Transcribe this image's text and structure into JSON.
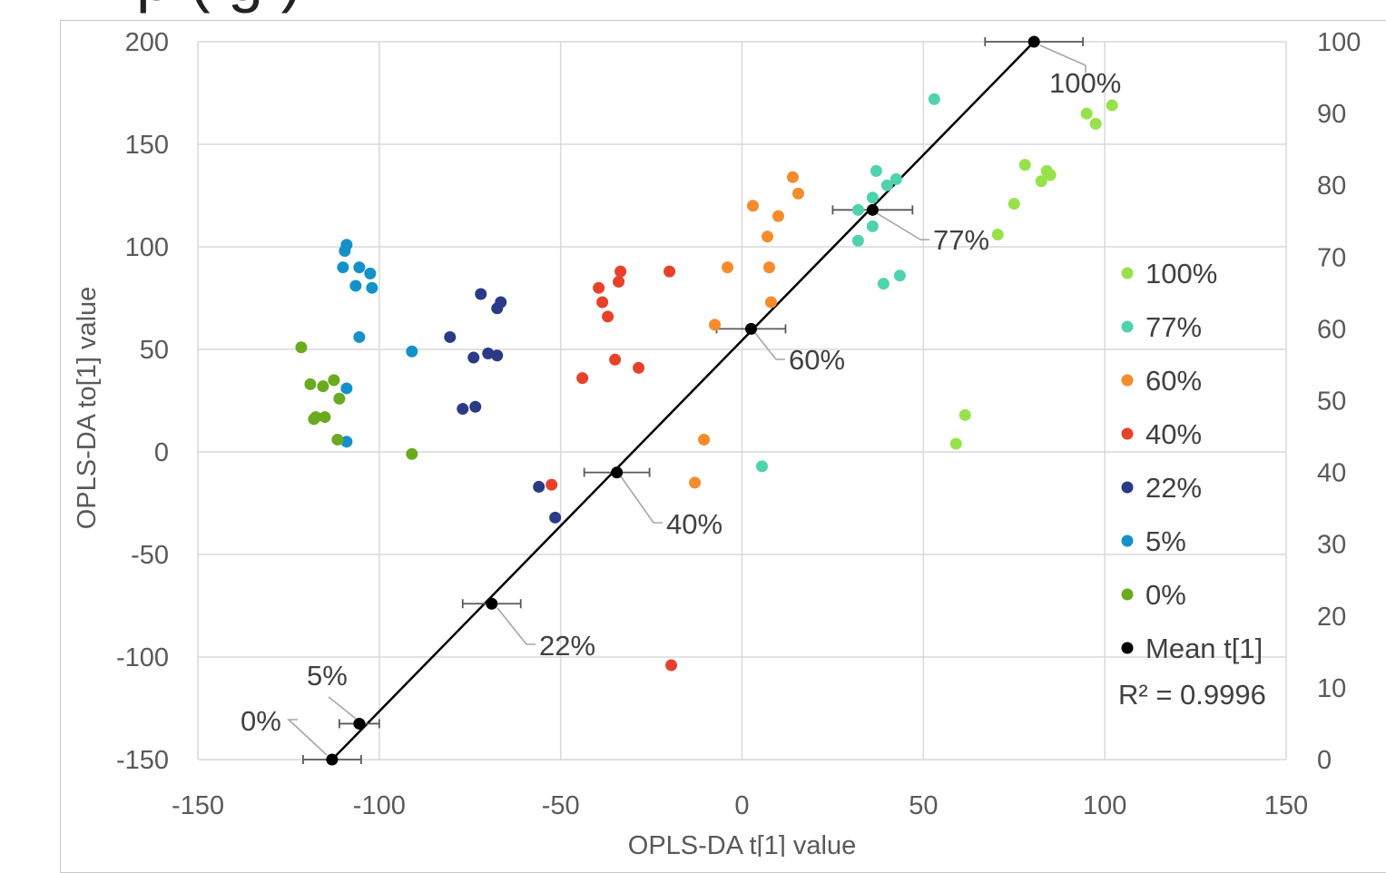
{
  "page": {
    "title": "p                          ( g       )"
  },
  "colors": {
    "0%": "#6aaa1f",
    "5%": "#1591c9",
    "22%": "#2a3a87",
    "40%": "#e8412a",
    "60%": "#f68b2c",
    "77%": "#4fd2b0",
    "100%": "#97e24a",
    "mean": "#000000",
    "grid": "#d9d9d9",
    "error_bar": "#595959",
    "leader_line": "#a6a6a6"
  },
  "chart_data": {
    "type": "scatter",
    "xlabel": "OPLS-DA t[1] value",
    "ylabel": "OPLS-DA to[1] value",
    "xlim": [
      -150,
      150
    ],
    "ylim": [
      -150,
      200
    ],
    "y2lim": [
      0,
      100
    ],
    "x_ticks": [
      "-150",
      "-100",
      "-50",
      "0",
      "50",
      "100",
      "150"
    ],
    "y_ticks": [
      "200",
      "150",
      "100",
      "50",
      "0",
      "-50",
      "-100",
      "-150"
    ],
    "y2_ticks": [
      "100",
      "90",
      "80",
      "70",
      "60",
      "50",
      "40",
      "30",
      "20",
      "10",
      "0"
    ],
    "grid": true,
    "legend_position": "right",
    "r_squared": "R² = 0.9996",
    "series": [
      {
        "name": "100%",
        "color_key": "100%",
        "points": [
          [
            102,
            169
          ],
          [
            95,
            165
          ],
          [
            97.5,
            160
          ],
          [
            78,
            140
          ],
          [
            84,
            137
          ],
          [
            85,
            135
          ],
          [
            82.5,
            132
          ],
          [
            75,
            121
          ],
          [
            70.5,
            106
          ],
          [
            61.5,
            18
          ],
          [
            59,
            4
          ]
        ]
      },
      {
        "name": "77%",
        "color_key": "77%",
        "points": [
          [
            53,
            172
          ],
          [
            37,
            137
          ],
          [
            42.5,
            133
          ],
          [
            40,
            130
          ],
          [
            36,
            124
          ],
          [
            32,
            118
          ],
          [
            36,
            110
          ],
          [
            32,
            103
          ],
          [
            43.5,
            86
          ],
          [
            39,
            82
          ],
          [
            5.5,
            -7
          ]
        ]
      },
      {
        "name": "60%",
        "color_key": "60%",
        "points": [
          [
            14,
            134
          ],
          [
            15.5,
            126
          ],
          [
            3,
            120
          ],
          [
            10,
            115
          ],
          [
            7,
            105
          ],
          [
            -4,
            90
          ],
          [
            7.5,
            90
          ],
          [
            8,
            73
          ],
          [
            -7.5,
            62
          ],
          [
            -10.5,
            6
          ],
          [
            -13,
            -15
          ]
        ]
      },
      {
        "name": "40%",
        "color_key": "40%",
        "points": [
          [
            -33.5,
            88
          ],
          [
            -20,
            88
          ],
          [
            -34,
            83
          ],
          [
            -39.5,
            80
          ],
          [
            -38.5,
            73
          ],
          [
            -37,
            66
          ],
          [
            -35,
            45
          ],
          [
            -28.5,
            41
          ],
          [
            -44,
            36
          ],
          [
            -52.5,
            -16
          ],
          [
            -19.5,
            -104
          ]
        ]
      },
      {
        "name": "22%",
        "color_key": "22%",
        "points": [
          [
            -72,
            77
          ],
          [
            -66.5,
            73
          ],
          [
            -67.5,
            70
          ],
          [
            -80.5,
            56
          ],
          [
            -70,
            48
          ],
          [
            -67.5,
            47
          ],
          [
            -74,
            46
          ],
          [
            -73.5,
            22
          ],
          [
            -77,
            21
          ],
          [
            -56,
            -17
          ],
          [
            -51.5,
            -32
          ]
        ]
      },
      {
        "name": "5%",
        "color_key": "5%",
        "points": [
          [
            -109,
            101
          ],
          [
            -109.5,
            98
          ],
          [
            -110,
            90
          ],
          [
            -105.5,
            90
          ],
          [
            -102.5,
            87
          ],
          [
            -106.5,
            81
          ],
          [
            -102,
            80
          ],
          [
            -105.5,
            56
          ],
          [
            -91,
            49
          ],
          [
            -109,
            31
          ],
          [
            -109,
            5
          ]
        ]
      },
      {
        "name": "0%",
        "color_key": "0%",
        "points": [
          [
            -121.5,
            51
          ],
          [
            -112.5,
            35
          ],
          [
            -119,
            33
          ],
          [
            -115.5,
            32
          ],
          [
            -111,
            26
          ],
          [
            -115,
            17
          ],
          [
            -117.5,
            17
          ],
          [
            -118,
            16
          ],
          [
            -111.5,
            6
          ],
          [
            -91,
            -1
          ]
        ]
      }
    ],
    "mean_series": {
      "name": "Mean t[1]",
      "color_key": "mean",
      "points": [
        {
          "label": "0%",
          "x": -113,
          "y": -150,
          "err": 8
        },
        {
          "label": "5%",
          "x": -105.5,
          "y": -132.5,
          "err": 5.5
        },
        {
          "label": "22%",
          "x": -69,
          "y": -74,
          "err": 8
        },
        {
          "label": "40%",
          "x": -34.5,
          "y": -10,
          "err": 9
        },
        {
          "label": "60%",
          "x": 2.5,
          "y": 60,
          "err": 9.5
        },
        {
          "label": "77%",
          "x": 36,
          "y": 118,
          "err": 11
        },
        {
          "label": "100%",
          "x": 80.5,
          "y": 200,
          "err": 13.5
        }
      ]
    },
    "legend": [
      "100%",
      "77%",
      "60%",
      "40%",
      "22%",
      "5%",
      "0%",
      "Mean t[1]"
    ]
  }
}
